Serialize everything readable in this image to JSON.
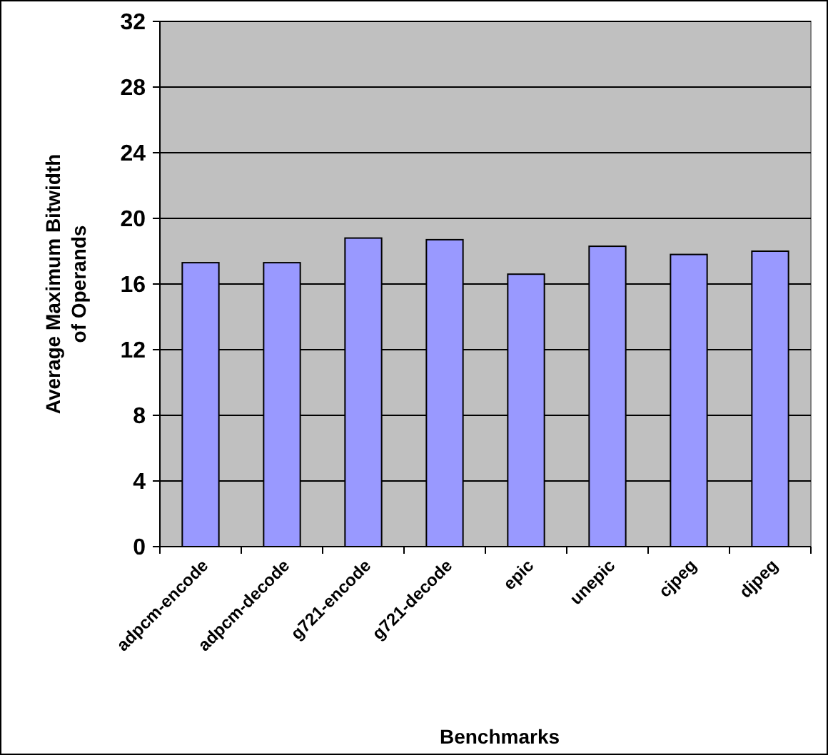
{
  "chart_data": {
    "type": "bar",
    "xlabel": "Benchmarks",
    "ylabel": "Average Maximum Bitwidth\nof Operands",
    "categories": [
      "adpcm-encode",
      "adpcm-decode",
      "g721-encode",
      "g721-decode",
      "epic",
      "unepic",
      "cjpeg",
      "djpeg"
    ],
    "values": [
      17.3,
      17.3,
      18.8,
      18.7,
      16.6,
      18.3,
      17.8,
      18.0
    ],
    "color": "#9999ff",
    "ylim": [
      0,
      32
    ],
    "yticks": [
      0,
      4,
      8,
      12,
      16,
      20,
      24,
      28,
      32
    ],
    "grid": "y"
  }
}
